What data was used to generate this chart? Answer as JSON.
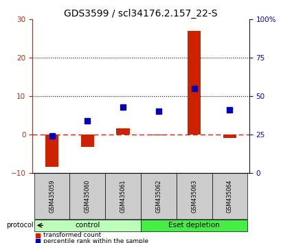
{
  "title": "GDS3599 / scl34176.2.157_22-S",
  "samples": [
    "GSM435059",
    "GSM435060",
    "GSM435061",
    "GSM435062",
    "GSM435063",
    "GSM435064"
  ],
  "red_values": [
    -8.5,
    -3.2,
    1.5,
    -0.3,
    27.0,
    -1.0
  ],
  "blue_values_pct": [
    24.0,
    34.0,
    43.0,
    40.0,
    55.0,
    41.0
  ],
  "groups": [
    {
      "label": "control",
      "indices": [
        0,
        1,
        2
      ],
      "color": "#bbffbb"
    },
    {
      "label": "Eset depletion",
      "indices": [
        3,
        4,
        5
      ],
      "color": "#44ee44"
    }
  ],
  "ylim_left": [
    -10,
    30
  ],
  "ylim_right": [
    0,
    100
  ],
  "yticks_left": [
    -10,
    0,
    10,
    20,
    30
  ],
  "yticks_right": [
    0,
    25,
    50,
    75,
    100
  ],
  "ytick_labels_right": [
    "0",
    "25",
    "50",
    "75",
    "100%"
  ],
  "hlines_dotted": [
    10,
    20
  ],
  "bar_color": "#cc2200",
  "square_color": "#0000bb",
  "dashed_color": "#cc2200",
  "protocol_label": "protocol",
  "legend_red": "transformed count",
  "legend_blue": "percentile rank within the sample",
  "sample_box_color": "#cccccc",
  "title_fontsize": 10,
  "tick_fontsize": 7.5,
  "label_fontsize": 7,
  "sample_fontsize": 5.8
}
